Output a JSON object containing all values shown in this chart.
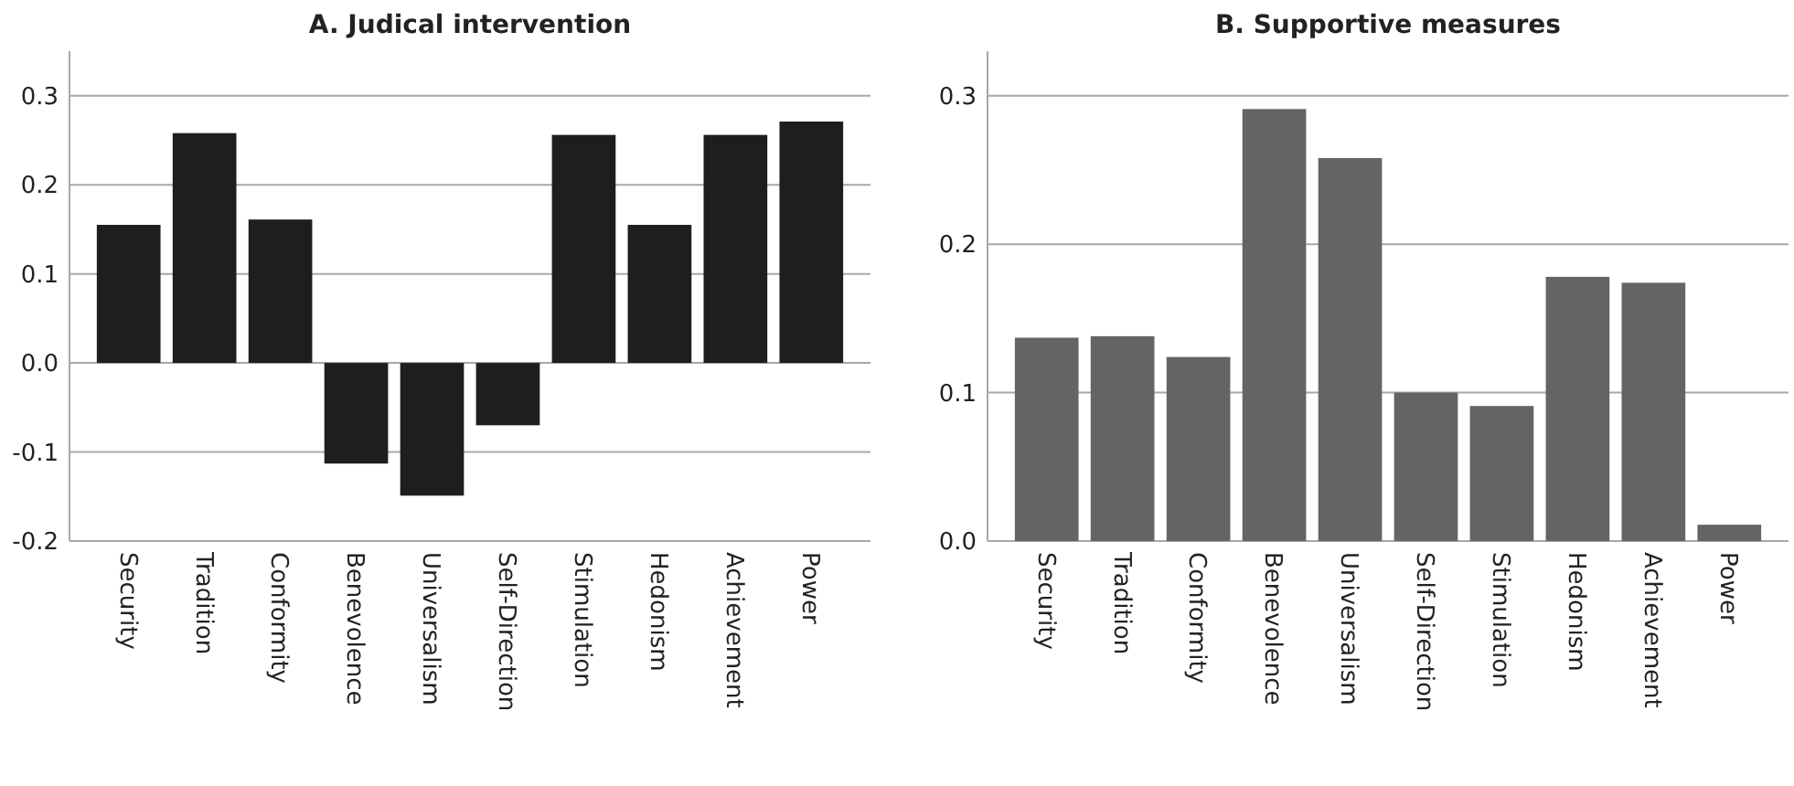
{
  "chart_data": [
    {
      "type": "bar",
      "title": "A. Judical intervention",
      "categories": [
        "Security",
        "Tradition",
        "Conformity",
        "Benevolence",
        "Universalism",
        "Self-Direction",
        "Stimulation",
        "Hedonism",
        "Achievement",
        "Power"
      ],
      "values": [
        0.155,
        0.258,
        0.161,
        -0.113,
        -0.149,
        -0.07,
        0.256,
        0.155,
        0.256,
        0.271
      ],
      "color": "#1e1e1c",
      "ylim": [
        -0.2,
        0.35
      ],
      "yticks": [
        {
          "value": -0.2,
          "label": "-0.2"
        },
        {
          "value": -0.1,
          "label": "-0.1"
        },
        {
          "value": 0,
          "label": "0.0"
        },
        {
          "value": 0.1,
          "label": "0.1"
        },
        {
          "value": 0.2,
          "label": "0.2"
        },
        {
          "value": 0.3,
          "label": "0.3"
        }
      ],
      "grid": "y"
    },
    {
      "type": "bar",
      "title": "B. Supportive measures",
      "categories": [
        "Security",
        "Tradition",
        "Conformity",
        "Benevolence",
        "Universalism",
        "Self-Direction",
        "Stimulation",
        "Hedonism",
        "Achievement",
        "Power"
      ],
      "values": [
        0.137,
        0.138,
        0.124,
        0.291,
        0.258,
        0.1,
        0.091,
        0.178,
        0.174,
        0.011
      ],
      "color": "#646464",
      "ylim": [
        0,
        0.33
      ],
      "yticks": [
        {
          "value": 0,
          "label": "0.0"
        },
        {
          "value": 0.1,
          "label": "0.1"
        },
        {
          "value": 0.2,
          "label": "0.2"
        },
        {
          "value": 0.3,
          "label": "0.3"
        }
      ],
      "grid": "y"
    }
  ]
}
